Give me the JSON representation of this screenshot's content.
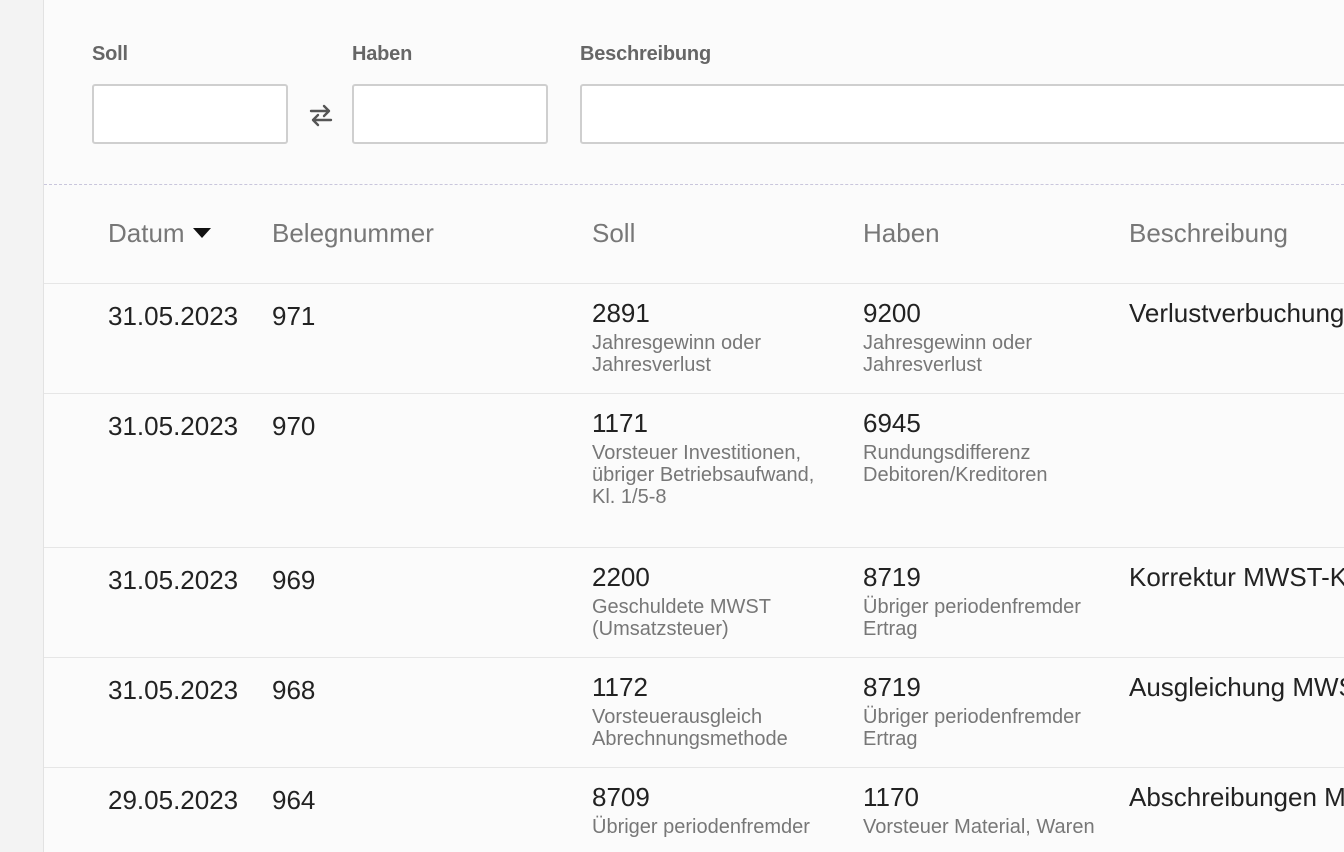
{
  "filters": {
    "soll_label": "Soll",
    "haben_label": "Haben",
    "beschreibung_label": "Beschreibung",
    "soll_value": "",
    "haben_value": "",
    "beschreibung_value": "",
    "swap_icon": "swap-arrows-icon"
  },
  "table": {
    "columns": [
      "Datum",
      "Belegnummer",
      "Soll",
      "Haben",
      "Beschreibung"
    ],
    "sort_column": "Datum",
    "sort_direction": "descending",
    "rows": [
      {
        "date": "31.05.2023",
        "number": "971",
        "soll_num": "2891",
        "soll_name": "Jahresgewinn oder Jahresverlust",
        "haben_num": "9200",
        "haben_name": "Jahresgewinn oder Jahresverlust",
        "desc": "Verlustverbuchung"
      },
      {
        "date": "31.05.2023",
        "number": "970",
        "soll_num": "1171",
        "soll_name": "Vorsteuer Investitionen, übriger Betriebsaufwand, Kl. 1/5-8",
        "haben_num": "6945",
        "haben_name": "Rundungsdifferenz Debitoren/Kreditoren",
        "desc": ""
      },
      {
        "date": "31.05.2023",
        "number": "969",
        "soll_num": "2200",
        "soll_name": "Geschuldete MWST (Umsatzsteuer)",
        "haben_num": "8719",
        "haben_name": "Übriger periodenfremder Ertrag",
        "desc": "Korrektur MWST-K"
      },
      {
        "date": "31.05.2023",
        "number": "968",
        "soll_num": "1172",
        "soll_name": "Vorsteuerausgleich Abrechnungsmethode",
        "haben_num": "8719",
        "haben_name": "Übriger periodenfremder Ertrag",
        "desc": "Ausgleichung MWS"
      },
      {
        "date": "29.05.2023",
        "number": "964",
        "soll_num": "8709",
        "soll_name": "Übriger periodenfremder",
        "haben_num": "1170",
        "haben_name": "Vorsteuer Material, Waren",
        "desc": "Abschreibungen M"
      }
    ]
  }
}
